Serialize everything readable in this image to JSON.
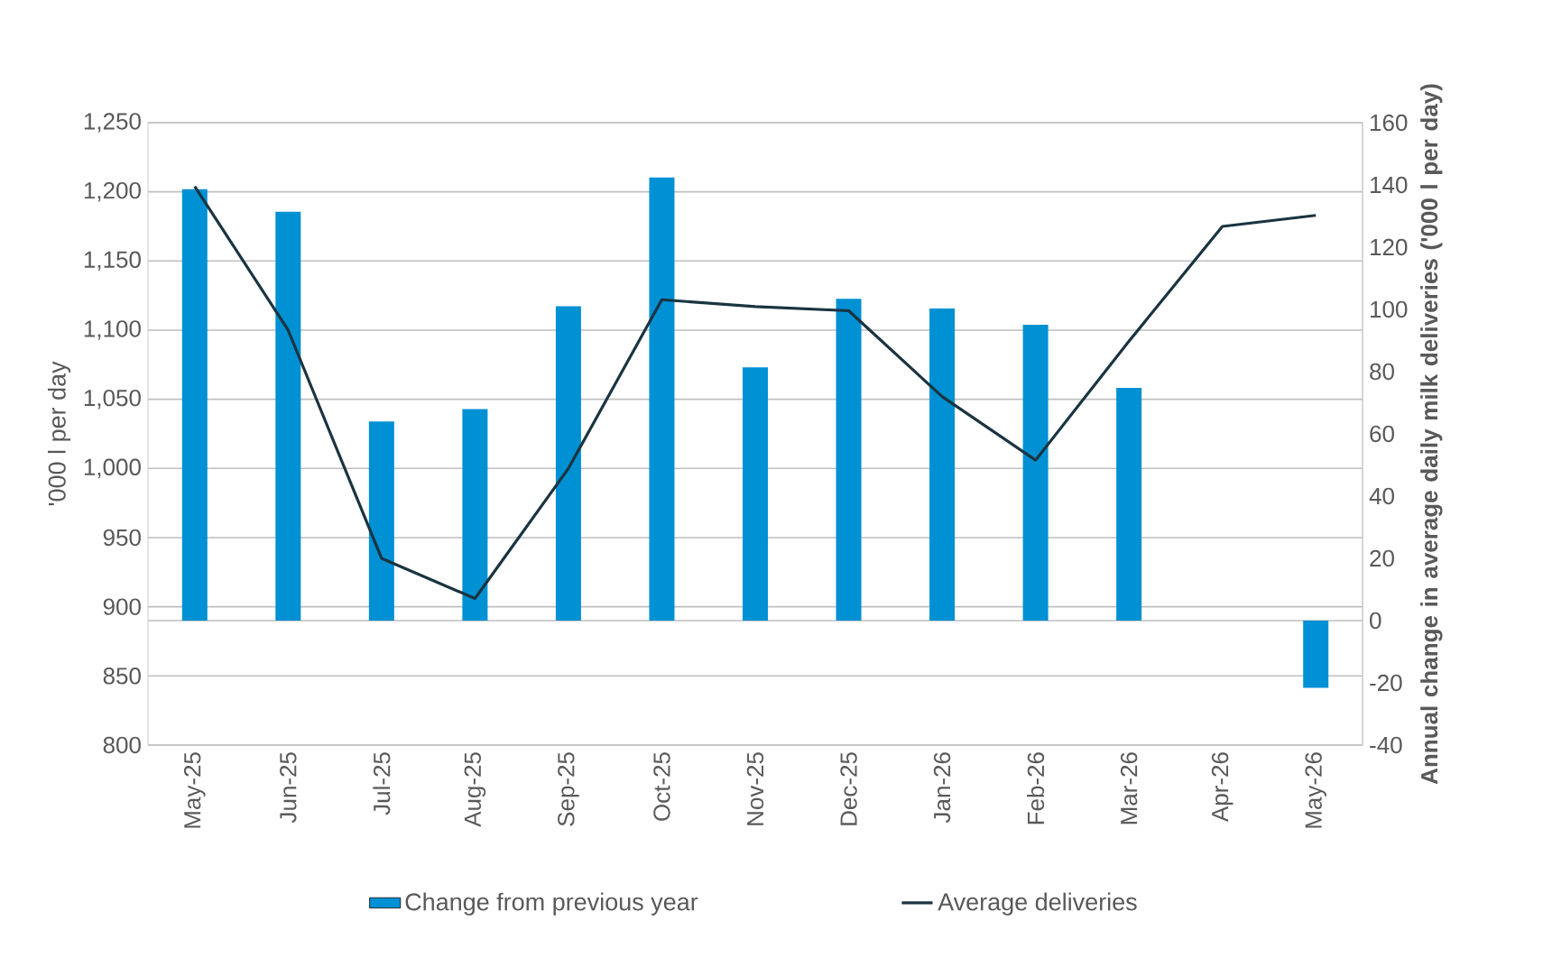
{
  "chart_data": {
    "type": "bar",
    "categories": [
      "May-25",
      "Jun-25",
      "Jul-25",
      "Aug-25",
      "Sep-25",
      "Oct-25",
      "Nov-25",
      "Dec-25",
      "Jan-26",
      "Feb-26",
      "Mar-26",
      "Apr-26",
      "May-26"
    ],
    "series": [
      {
        "name": "Change from previous year",
        "axis": "y2",
        "color": "#0090d4",
        "values": [
          138.6,
          131.4,
          64,
          68,
          101,
          142.4,
          81.4,
          103.4,
          100.3,
          95.1,
          74.8,
          null,
          -21.6
        ]
      },
      {
        "name": "Average deliveries",
        "type": "line",
        "color": "#1a3440",
        "values": [
          1204,
          1100,
          935,
          906,
          1000,
          1122,
          1117,
          1114,
          1052,
          1006,
          1092,
          1175,
          1183
        ]
      }
    ],
    "ylabel": "'000 l per day",
    "y2label": "Annual change in average daily milk deliveries ('000 l per day)",
    "ylim": [
      800,
      1250
    ],
    "yticks": [
      800,
      850,
      900,
      950,
      {
        "value": 1000,
        "label": "1,000"
      },
      {
        "value": 1050,
        "label": "1,050"
      },
      {
        "value": 1100,
        "label": "1,100"
      },
      {
        "value": 1150,
        "label": "1,150"
      },
      {
        "value": 1200,
        "label": "1,200"
      },
      {
        "value": 1250,
        "label": "1,250"
      }
    ],
    "y2lim": [
      -40,
      160
    ],
    "y2ticks": [
      -40,
      -20,
      0,
      20,
      40,
      60,
      80,
      100,
      120,
      140,
      160
    ],
    "grid": "y",
    "legend": "bottom"
  }
}
